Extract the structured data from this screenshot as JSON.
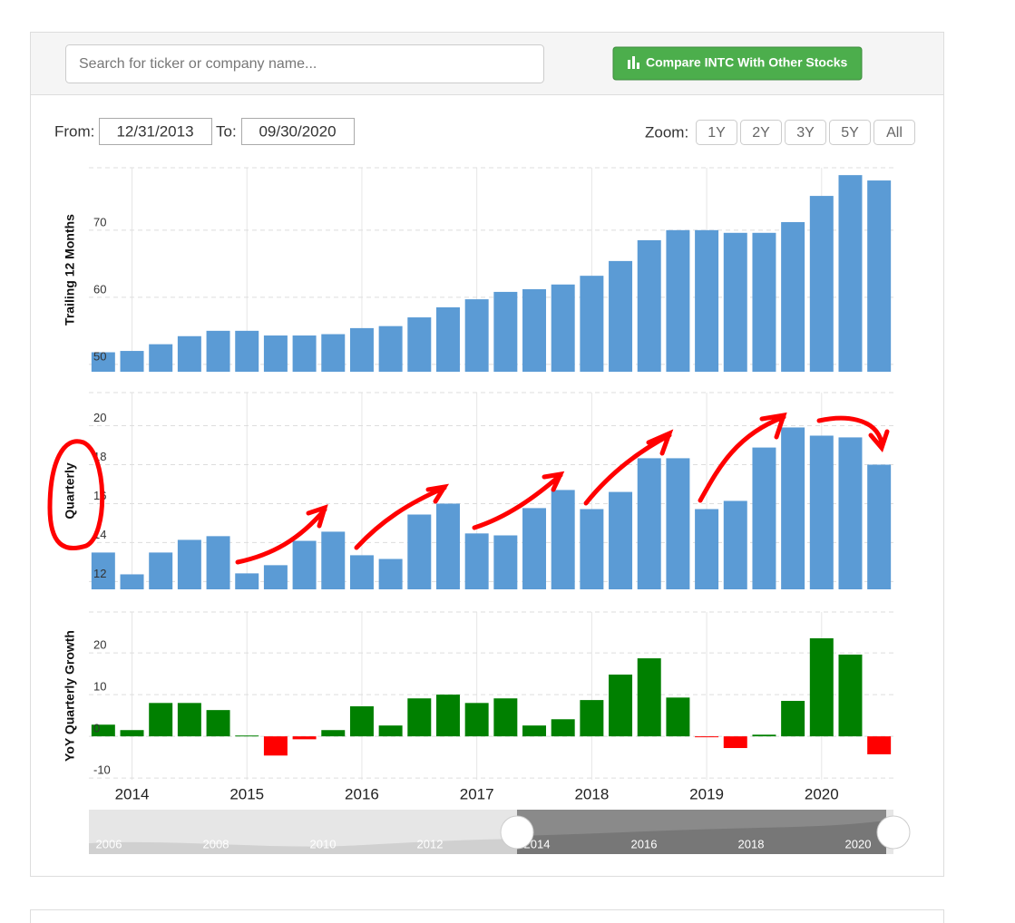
{
  "search_placeholder": "Search for ticker or company name...",
  "compare_button": "Compare INTC With Other Stocks",
  "from_label": "From:",
  "from_date": "12/31/2013",
  "to_label": "To:",
  "to_date": "09/30/2020",
  "zoom_label": "Zoom:",
  "zoom_options": [
    "1Y",
    "2Y",
    "3Y",
    "5Y",
    "All"
  ],
  "navigator_labels": [
    "2006",
    "2008",
    "2010",
    "2012",
    "2014",
    "2016",
    "2018",
    "2020"
  ],
  "chart_data": [
    {
      "type": "bar",
      "y_label": "Trailing 12 Months",
      "color": "#5b9bd5",
      "grid": true,
      "values": [
        51.8,
        52.0,
        53.0,
        54.2,
        55.0,
        55.0,
        54.3,
        54.3,
        54.5,
        55.4,
        55.7,
        57.0,
        58.5,
        59.7,
        60.8,
        61.2,
        61.9,
        63.2,
        65.4,
        68.5,
        70.0,
        70.0,
        69.6,
        69.6,
        71.2,
        75.1,
        78.2,
        77.4
      ],
      "ylim": [
        48.9,
        79.3
      ],
      "yticks": [
        50,
        60,
        70
      ]
    },
    {
      "type": "bar",
      "y_label": "Quarterly",
      "color": "#5b9bd5",
      "grid": true,
      "values": [
        13.49,
        12.37,
        13.49,
        14.14,
        14.33,
        12.42,
        12.84,
        14.09,
        14.56,
        13.35,
        13.16,
        15.44,
        16.0,
        14.47,
        14.37,
        15.77,
        16.7,
        15.72,
        16.6,
        18.33,
        18.33,
        15.72,
        16.14,
        18.88,
        19.91,
        19.49,
        19.4,
        18.0
      ],
      "ylim": [
        11.6,
        21.7
      ],
      "yticks": [
        12,
        14,
        16,
        18,
        20
      ]
    },
    {
      "type": "bar",
      "y_label": "YoY Quarterly Growth",
      "color": "#008000",
      "negative_color": "#ff0000",
      "grid": true,
      "categories": [
        null,
        "2014",
        null,
        null,
        null,
        "2015",
        null,
        null,
        null,
        "2016",
        null,
        null,
        null,
        "2017",
        null,
        null,
        null,
        "2018",
        null,
        null,
        null,
        "2019",
        null,
        null,
        null,
        "2020",
        null,
        null
      ],
      "values": [
        2.8,
        1.5,
        8.0,
        8.0,
        6.3,
        0.2,
        -4.6,
        -0.7,
        1.5,
        7.2,
        2.6,
        9.1,
        10.0,
        8.0,
        9.1,
        2.6,
        4.1,
        8.7,
        14.8,
        18.7,
        9.3,
        -0.2,
        -2.8,
        0.4,
        8.5,
        23.5,
        19.6,
        -4.3
      ],
      "ylim": [
        -10.4,
        29.8
      ],
      "yticks": [
        -10,
        0,
        10,
        20
      ]
    }
  ]
}
